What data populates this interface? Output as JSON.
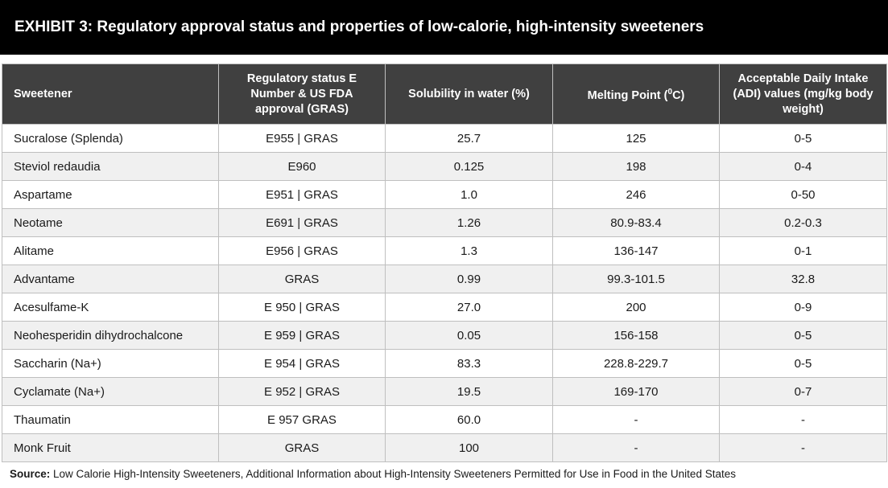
{
  "title": "EXHIBIT 3: Regulatory approval status and properties of low-calorie, high-intensity sweeteners",
  "table": {
    "headers": [
      "Sweetener",
      "Regulatory status E Number & US FDA approval (GRAS)",
      "Solubility in water (%)",
      "Melting Point (",
      "Acceptable Daily Intake (ADI) values (mg/kg body weight)"
    ],
    "melting_point_sup": "0",
    "melting_point_tail": "C)",
    "rows": [
      [
        "Sucralose (Splenda)",
        "E955 | GRAS",
        "25.7",
        "125",
        "0-5"
      ],
      [
        "Steviol redaudia",
        "E960",
        "0.125",
        "198",
        "0-4"
      ],
      [
        "Aspartame",
        "E951 | GRAS",
        "1.0",
        "246",
        "0-50"
      ],
      [
        "Neotame",
        "E691 | GRAS",
        "1.26",
        "80.9-83.4",
        "0.2-0.3"
      ],
      [
        "Alitame",
        "E956 | GRAS",
        "1.3",
        "136-147",
        "0-1"
      ],
      [
        "Advantame",
        "GRAS",
        "0.99",
        "99.3-101.5",
        "32.8"
      ],
      [
        "Acesulfame-K",
        "E 950 | GRAS",
        "27.0",
        "200",
        "0-9"
      ],
      [
        "Neohesperidin dihydrochalcone",
        "E 959 | GRAS",
        "0.05",
        "156-158",
        "0-5"
      ],
      [
        "Saccharin (Na+)",
        "E 954 | GRAS",
        "83.3",
        "228.8-229.7",
        "0-5"
      ],
      [
        "Cyclamate (Na+)",
        "E 952 | GRAS",
        "19.5",
        "169-170",
        "0-7"
      ],
      [
        "Thaumatin",
        "E 957 GRAS",
        "60.0",
        "-",
        "-"
      ],
      [
        "Monk Fruit",
        "GRAS",
        "100",
        "-",
        "-"
      ]
    ]
  },
  "source": {
    "label": "Source:",
    "text": "Low Calorie High-Intensity Sweeteners, Additional Information about High-Intensity Sweeteners Permitted for Use in Food in the United States"
  },
  "colors": {
    "title_bg": "#000000",
    "header_bg": "#404040",
    "row_alt_bg": "#f0f0f0",
    "border": "#bfbfbf"
  }
}
